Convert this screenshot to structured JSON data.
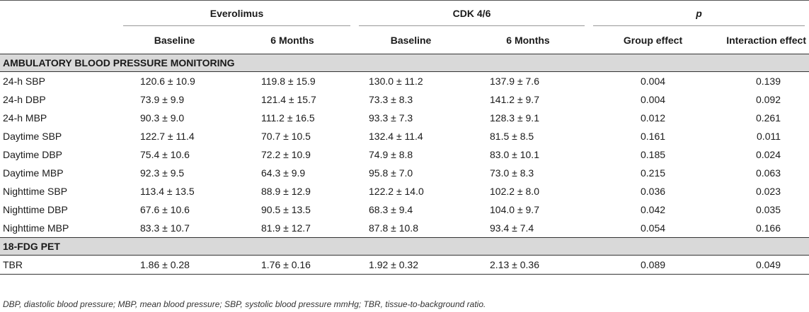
{
  "headers": {
    "everolimus": "Everolimus",
    "cdk": "CDK 4/6",
    "p": "p",
    "baseline": "Baseline",
    "six_months": "6 Months",
    "group_effect": "Group effect",
    "interaction_effect": "Interaction effect"
  },
  "sections": [
    {
      "title": "AMBULATORY BLOOD PRESSURE MONITORING",
      "rows": [
        {
          "label": "24-h SBP",
          "eb": "120.6 ± 10.9",
          "e6": "119.8 ± 15.9",
          "cb": "130.0 ± 11.2",
          "c6": "137.9 ± 7.6",
          "g": "0.004",
          "i": "0.139"
        },
        {
          "label": "24-h DBP",
          "eb": "73.9 ± 9.9",
          "e6": "121.4 ± 15.7",
          "cb": "73.3 ± 8.3",
          "c6": "141.2 ± 9.7",
          "g": "0.004",
          "i": "0.092"
        },
        {
          "label": "24-h MBP",
          "eb": "90.3 ± 9.0",
          "e6": "111.2 ± 16.5",
          "cb": "93.3 ± 7.3",
          "c6": "128.3 ± 9.1",
          "g": "0.012",
          "i": "0.261"
        },
        {
          "label": "Daytime SBP",
          "eb": "122.7 ± 11.4",
          "e6": "70.7 ± 10.5",
          "cb": "132.4 ± 11.4",
          "c6": "81.5 ± 8.5",
          "g": "0.161",
          "i": "0.011"
        },
        {
          "label": "Daytime DBP",
          "eb": "75.4 ± 10.6",
          "e6": "72.2 ± 10.9",
          "cb": "74.9 ± 8.8",
          "c6": "83.0 ± 10.1",
          "g": "0.185",
          "i": "0.024"
        },
        {
          "label": "Daytime MBP",
          "eb": "92.3 ± 9.5",
          "e6": "64.3 ± 9.9",
          "cb": "95.8 ± 7.0",
          "c6": "73.0 ± 8.3",
          "g": "0.215",
          "i": "0.063"
        },
        {
          "label": "Nighttime SBP",
          "eb": "113.4 ± 13.5",
          "e6": "88.9 ± 12.9",
          "cb": "122.2 ± 14.0",
          "c6": "102.2 ± 8.0",
          "g": "0.036",
          "i": "0.023"
        },
        {
          "label": "Nighttime DBP",
          "eb": "67.6 ± 10.6",
          "e6": "90.5 ± 13.5",
          "cb": "68.3 ± 9.4",
          "c6": "104.0 ± 9.7",
          "g": "0.042",
          "i": "0.035"
        },
        {
          "label": "Nighttime MBP",
          "eb": "83.3 ± 10.7",
          "e6": "81.9 ± 12.7",
          "cb": "87.8 ± 10.8",
          "c6": "93.4 ± 7.4",
          "g": "0.054",
          "i": "0.166"
        }
      ]
    },
    {
      "title": "18-FDG PET",
      "rows": [
        {
          "label": "TBR",
          "eb": "1.86 ± 0.28",
          "e6": "1.76 ± 0.16",
          "cb": "1.92 ± 0.32",
          "c6": "2.13 ± 0.36",
          "g": "0.089",
          "i": "0.049"
        }
      ]
    }
  ],
  "footnote": "DBP, diastolic blood pressure; MBP, mean blood pressure; SBP, systolic blood pressure mmHg; TBR, tissue-to-background ratio.",
  "chart_data": {
    "type": "table",
    "columns": [
      "",
      "Everolimus Baseline",
      "Everolimus 6 Months",
      "CDK 4/6 Baseline",
      "CDK 4/6 6 Months",
      "p Group effect",
      "p Interaction effect"
    ]
  }
}
